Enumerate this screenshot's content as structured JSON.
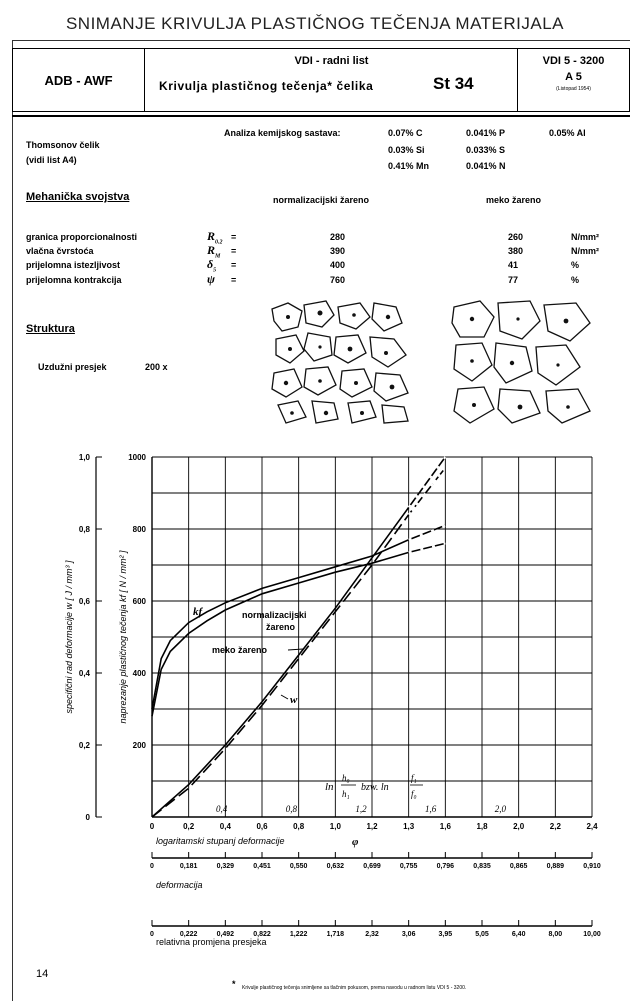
{
  "page_title": "SNIMANJE KRIVULJA PLASTIČNOG TEČENJA MATERIJALA",
  "header": {
    "org": "ADB - AWF",
    "sheet_type": "VDI - radni list",
    "subject": "Krivulja plastičnog tečenja* čelika",
    "steel_grade": "St 34",
    "code": "VDI 5 - 3200",
    "sheet_no": "A 5",
    "date": "(Listopad 1954)"
  },
  "material": {
    "name": "Thomsonov čelik",
    "ref": "(vidi list A4)",
    "analysis_label": "Analiza kemijskog sastava:",
    "composition": [
      [
        "0.07% C",
        "0.041% P",
        "0.05% Al"
      ],
      [
        "0.03% Si",
        "0.033% S",
        ""
      ],
      [
        "0.41% Mn",
        "0.041% N",
        ""
      ]
    ]
  },
  "mechanical": {
    "heading": "Mehanička svojstva",
    "col_normalized": "normalizacijski žareno",
    "col_annealed": "meko žareno",
    "rows": [
      {
        "name": "granica proporcionalnosti",
        "sym": "R",
        "sub": "0.2",
        "eq": "=",
        "normalized": "280",
        "annealed": "260",
        "unit": "N/mm²"
      },
      {
        "name": "vlačna čvrstoća",
        "sym": "R",
        "sub": "M",
        "eq": "=",
        "normalized": "390",
        "annealed": "380",
        "unit": "N/mm²"
      },
      {
        "name": "prijelomna istezljivost",
        "sym": "δ",
        "sub": "5",
        "eq": "=",
        "normalized": "400",
        "annealed": "41",
        "unit": "%"
      },
      {
        "name": "prijelomna kontrakcija",
        "sym": "ψ",
        "sub": "",
        "eq": "=",
        "normalized": "760",
        "annealed": "77",
        "unit": "%"
      }
    ]
  },
  "structure": {
    "heading": "Struktura",
    "section_label": "Uzdužni presjek",
    "magnification": "200 x"
  },
  "chart": {
    "left_axis_ticks": [
      "1,0",
      "0,8",
      "0,6",
      "0,4",
      "0,2",
      "0"
    ],
    "left_axis_label": "specifični rad deformacije  w  [ J / mm³ ]",
    "right_axis_ticks": [
      "1000",
      "800",
      "600",
      "400",
      "200"
    ],
    "right_axis_label": "naprezanje plastičnog tečenja  kf  [ N / mm² ]",
    "x_ticks": [
      "0",
      "0,2",
      "0,4",
      "0,6",
      "0,8",
      "1,0",
      "1,2",
      "1,3",
      "1,6",
      "1,8",
      "2,0",
      "2,2",
      "2,4"
    ],
    "inner_ticks": [
      "0,4",
      "0,8",
      "1,2",
      "1,6",
      "2,0"
    ],
    "x_label": "logaritamski stupanj deformacije",
    "x_symbol": "φ",
    "label_kf": "kf",
    "label_w": "w",
    "label_normalized_1": "normalizacijski",
    "label_normalized_2": "žareno",
    "label_annealed": "meko žareno",
    "formula_ln1": "ln",
    "formula_h0": "h₀",
    "formula_h1": "h₁",
    "formula_bzw": "bzw. ln",
    "formula_f1": "f₁",
    "formula_f0": "f₀"
  },
  "scale_deformation": {
    "ticks": [
      "0",
      "0,181",
      "0,329",
      "0,451",
      "0,550",
      "0,632",
      "0,699",
      "0,755",
      "0,796",
      "0,835",
      "0,865",
      "0,889",
      "0,910"
    ],
    "label": "deformacija"
  },
  "scale_area": {
    "ticks": [
      "0",
      "0,222",
      "0,492",
      "0,822",
      "1,222",
      "1,718",
      "2,32",
      "3,06",
      "3,95",
      "5,05",
      "6,40",
      "8,00",
      "10,00"
    ],
    "label": "relativna promjena presjeka"
  },
  "page_number": "14",
  "footnote_mark": "*",
  "footnote": "Krivulje plastičnog tečenja snimljene sa tlačnim pokusom, prema navodu u radnom listu VDI 5 - 3200.",
  "chart_data": {
    "type": "line",
    "xlabel": "logaritamski stupanj deformacije φ",
    "ylabel": "naprezanje plastičnog tečenja kf [N/mm²]",
    "xlim": [
      0,
      2.4
    ],
    "ylim": [
      0,
      1000
    ],
    "y2label": "specifični rad deformacije w [J/mm³]",
    "y2lim": [
      0,
      1.0
    ],
    "series": [
      {
        "name": "kf normalizacijski žareno",
        "axis": "y",
        "x": [
          0.0,
          0.05,
          0.1,
          0.2,
          0.3,
          0.4,
          0.6,
          0.8,
          1.0,
          1.2,
          1.4,
          1.6
        ],
        "values": [
          300,
          440,
          490,
          540,
          570,
          595,
          635,
          665,
          695,
          725,
          770,
          810
        ]
      },
      {
        "name": "kf meko žareno",
        "axis": "y",
        "x": [
          0.0,
          0.05,
          0.1,
          0.2,
          0.3,
          0.4,
          0.6,
          0.8,
          1.0,
          1.2,
          1.4,
          1.6
        ],
        "values": [
          280,
          410,
          460,
          510,
          545,
          575,
          620,
          650,
          680,
          705,
          735,
          760
        ]
      },
      {
        "name": "w normalizacijski žareno",
        "axis": "y2",
        "x": [
          0.0,
          0.2,
          0.4,
          0.6,
          0.8,
          1.0,
          1.2,
          1.4,
          1.6
        ],
        "values": [
          0.0,
          0.09,
          0.2,
          0.32,
          0.45,
          0.58,
          0.72,
          0.86,
          1.0
        ]
      },
      {
        "name": "w meko žareno",
        "axis": "y2",
        "x": [
          0.0,
          0.2,
          0.4,
          0.6,
          0.8,
          1.0,
          1.2,
          1.4,
          1.6
        ],
        "values": [
          0.0,
          0.08,
          0.19,
          0.31,
          0.44,
          0.57,
          0.7,
          0.84,
          0.97
        ]
      }
    ]
  }
}
